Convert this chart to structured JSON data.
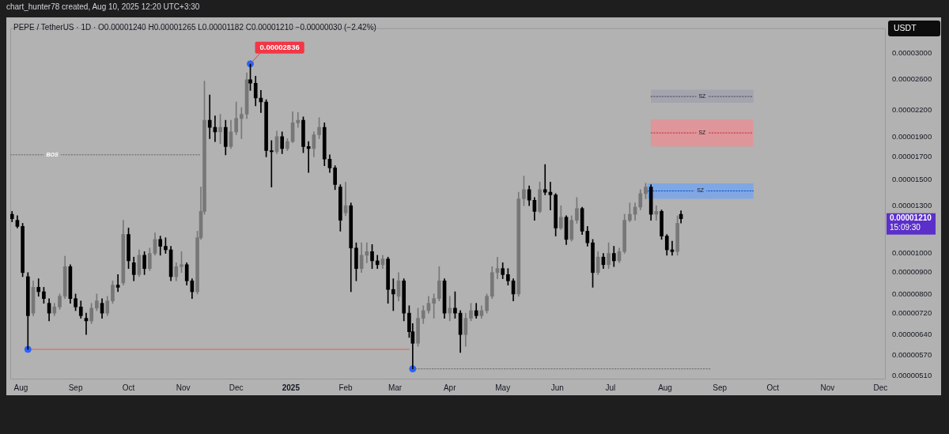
{
  "chart_data": {
    "type": "candlestick",
    "title": "PEPE / TetherUS · 1D · O0.00001240 H0.00001265 L0.00001182 C0.00001210 −0.00000030 (−2.42%)",
    "ylabel": "USDT",
    "annotations": [
      "chart_hunter78 created, Aug 10, 2025 12:20 UTC+3:30",
      {
        "text": "0.00002836",
        "x": "2024-12-09",
        "y": 2.836e-05
      },
      "0.00001210",
      "15:09:30"
    ],
    "x": [
      "2024-07-27",
      "2024-07-30",
      "2024-08-02",
      "2024-08-05",
      "2024-08-08",
      "2024-08-11",
      "2024-08-14",
      "2024-08-17",
      "2024-08-20",
      "2024-08-23",
      "2024-08-26",
      "2024-08-29",
      "2024-09-01",
      "2024-09-04",
      "2024-09-07",
      "2024-09-10",
      "2024-09-13",
      "2024-09-16",
      "2024-09-19",
      "2024-09-22",
      "2024-09-25",
      "2024-09-28",
      "2024-10-01",
      "2024-10-04",
      "2024-10-07",
      "2024-10-10",
      "2024-10-13",
      "2024-10-16",
      "2024-10-19",
      "2024-10-22",
      "2024-10-25",
      "2024-10-28",
      "2024-10-31",
      "2024-11-03",
      "2024-11-06",
      "2024-11-09",
      "2024-11-11",
      "2024-11-13",
      "2024-11-16",
      "2024-11-19",
      "2024-11-22",
      "2024-11-25",
      "2024-11-28",
      "2024-12-01",
      "2024-12-04",
      "2024-12-07",
      "2024-12-09",
      "2024-12-12",
      "2024-12-15",
      "2024-12-18",
      "2024-12-21",
      "2024-12-24",
      "2024-12-27",
      "2024-12-30",
      "2025-01-02",
      "2025-01-05",
      "2025-01-08",
      "2025-01-11",
      "2025-01-14",
      "2025-01-17",
      "2025-01-20",
      "2025-01-23",
      "2025-01-26",
      "2025-01-29",
      "2025-02-01",
      "2025-02-04",
      "2025-02-07",
      "2025-02-10",
      "2025-02-13",
      "2025-02-16",
      "2025-02-19",
      "2025-02-22",
      "2025-02-25",
      "2025-02-28",
      "2025-03-03",
      "2025-03-06",
      "2025-03-09",
      "2025-03-11",
      "2025-03-14",
      "2025-03-17",
      "2025-03-20",
      "2025-03-23",
      "2025-03-26",
      "2025-03-29",
      "2025-04-01",
      "2025-04-04",
      "2025-04-07",
      "2025-04-10",
      "2025-04-13",
      "2025-04-16",
      "2025-04-19",
      "2025-04-22",
      "2025-04-25",
      "2025-04-28",
      "2025-05-01",
      "2025-05-04",
      "2025-05-07",
      "2025-05-10",
      "2025-05-13",
      "2025-05-16",
      "2025-05-19",
      "2025-05-22",
      "2025-05-25",
      "2025-05-28",
      "2025-05-31",
      "2025-06-03",
      "2025-06-06",
      "2025-06-09",
      "2025-06-12",
      "2025-06-15",
      "2025-06-18",
      "2025-06-21",
      "2025-06-24",
      "2025-06-27",
      "2025-06-30",
      "2025-07-03",
      "2025-07-06",
      "2025-07-09",
      "2025-07-12",
      "2025-07-15",
      "2025-07-18",
      "2025-07-21",
      "2025-07-24",
      "2025-07-27",
      "2025-07-30",
      "2025-08-02",
      "2025-08-05",
      "2025-08-08",
      "2025-08-10"
    ],
    "ohlc": [
      [
        1.24e-05,
        1.26e-05,
        1.19e-05,
        1.21e-05
      ],
      [
        1.2e-05,
        1.23e-05,
        1.15e-05,
        1.16e-05
      ],
      [
        1.16e-05,
        1.18e-05,
        8.8e-06,
        9e-06
      ],
      [
        8.8e-06,
        9e-06,
        5.9e-06,
        7.1e-06
      ],
      [
        7.2e-06,
        8.6e-06,
        7.1e-06,
        8.3e-06
      ],
      [
        8.3e-06,
        8.7e-06,
        7.9e-06,
        8.1e-06
      ],
      [
        8.1e-06,
        8.3e-06,
        7.6e-06,
        7.8e-06
      ],
      [
        7.6e-06,
        7.8e-06,
        6.9e-06,
        7.2e-06
      ],
      [
        7.2e-06,
        7.6e-06,
        7.1e-06,
        7.45e-06
      ],
      [
        7.45e-06,
        8e-06,
        7.35e-06,
        7.9e-06
      ],
      [
        7.9e-06,
        9.85e-06,
        7.8e-06,
        9.3e-06
      ],
      [
        9.3e-06,
        9.4e-06,
        7.6e-06,
        7.8e-06
      ],
      [
        7.8e-06,
        8e-06,
        7.3e-06,
        7.45e-06
      ],
      [
        7.45e-06,
        7.7e-06,
        7e-06,
        7.1e-06
      ],
      [
        7e-06,
        7.2e-06,
        6.4e-06,
        6.9e-06
      ],
      [
        6.9e-06,
        7.6e-06,
        6.8e-06,
        7.4e-06
      ],
      [
        7.4e-06,
        8e-06,
        7.3e-06,
        7.7e-06
      ],
      [
        7.6e-06,
        7.8e-06,
        7e-06,
        7.2e-06
      ],
      [
        7.2e-06,
        7.9e-06,
        7.1e-06,
        7.7e-06
      ],
      [
        7.7e-06,
        8.6e-06,
        7.6e-06,
        8.4e-06
      ],
      [
        8.4e-06,
        8.9e-06,
        8.1e-06,
        8.3e-06
      ],
      [
        8.5e-06,
        1.2e-05,
        8.4e-06,
        1.11e-05
      ],
      [
        1.11e-05,
        1.15e-05,
        9.2e-06,
        9.6e-06
      ],
      [
        9.5e-06,
        9.8e-06,
        8.6e-06,
        8.9e-06
      ],
      [
        8.9e-06,
        1.02e-05,
        8.8e-06,
        9.9e-06
      ],
      [
        9.9e-06,
        1.01e-05,
        8.9e-06,
        9.2e-06
      ],
      [
        9.2e-06,
        1.03e-05,
        9.1e-06,
        1e-05
      ],
      [
        1e-05,
        1.12e-05,
        9.9e-06,
        1.08e-05
      ],
      [
        1.08e-05,
        1.1e-05,
        9.9e-06,
        1.04e-05
      ],
      [
        1.04e-05,
        1.09e-05,
        1e-05,
        1.02e-05
      ],
      [
        1.02e-05,
        1.04e-05,
        8.6e-06,
        8.8e-06
      ],
      [
        8.8e-06,
        9.5e-06,
        8.6e-06,
        9.3e-06
      ],
      [
        9.3e-06,
        1.01e-05,
        9e-06,
        9.4e-06
      ],
      [
        9.4e-06,
        9.5e-06,
        8.4e-06,
        8.6e-06
      ],
      [
        8.6e-06,
        8.7e-06,
        7.8e-06,
        8.1e-06
      ],
      [
        8.1e-06,
        1.13e-05,
        8e-06,
        1.09e-05
      ],
      [
        1.09e-05,
        1.44e-05,
        1.08e-05,
        1.26e-05
      ],
      [
        1.26e-05,
        2.58e-05,
        1.24e-05,
        2.08e-05
      ],
      [
        2.08e-05,
        2.39e-05,
        1.88e-05,
        2e-05
      ],
      [
        2e-05,
        2.13e-05,
        1.85e-05,
        1.95e-05
      ],
      [
        1.95e-05,
        2.15e-05,
        1.83e-05,
        2e-05
      ],
      [
        2e-05,
        2.08e-05,
        1.72e-05,
        1.8e-05
      ],
      [
        1.8e-05,
        2.08e-05,
        1.78e-05,
        1.95e-05
      ],
      [
        1.95e-05,
        2.3e-05,
        1.92e-05,
        2.1e-05
      ],
      [
        2.1e-05,
        2.23e-05,
        1.88e-05,
        2.15e-05
      ],
      [
        2.15e-05,
        2.7e-05,
        2.1e-05,
        2.6e-05
      ],
      [
        2.6e-05,
        2.836e-05,
        2.45e-05,
        2.55e-05
      ],
      [
        2.55e-05,
        2.65e-05,
        2.25e-05,
        2.35e-05
      ],
      [
        2.35e-05,
        2.45e-05,
        2.17e-05,
        2.3e-05
      ],
      [
        2.3e-05,
        2.33e-05,
        1.7e-05,
        1.76e-05
      ],
      [
        1.76e-05,
        1.86e-05,
        1.44e-05,
        1.75e-05
      ],
      [
        1.75e-05,
        1.96e-05,
        1.73e-05,
        1.9e-05
      ],
      [
        1.9e-05,
        1.95e-05,
        1.73e-05,
        1.78e-05
      ],
      [
        1.78e-05,
        1.88e-05,
        1.76e-05,
        1.85e-05
      ],
      [
        1.85e-05,
        2.18e-05,
        1.84e-05,
        2.05e-05
      ],
      [
        2.05e-05,
        2.17e-05,
        2e-05,
        2.08e-05
      ],
      [
        2.08e-05,
        2.12e-05,
        1.74e-05,
        1.8e-05
      ],
      [
        1.8e-05,
        1.85e-05,
        1.56e-05,
        1.78e-05
      ],
      [
        1.78e-05,
        1.95e-05,
        1.7e-05,
        1.92e-05
      ],
      [
        1.92e-05,
        2.11e-05,
        1.88e-05,
        2e-05
      ],
      [
        2e-05,
        2.05e-05,
        1.62e-05,
        1.68e-05
      ],
      [
        1.68e-05,
        1.72e-05,
        1.56e-05,
        1.6e-05
      ],
      [
        1.6e-05,
        1.62e-05,
        1.42e-05,
        1.46e-05
      ],
      [
        1.44e-05,
        1.46e-05,
        1.13e-05,
        1.2e-05
      ],
      [
        1.25e-05,
        1.48e-05,
        1.23e-05,
        1.3e-05
      ],
      [
        1.3e-05,
        1.32e-05,
        8.1e-06,
        1.03e-05
      ],
      [
        1.03e-05,
        1.06e-05,
        8.6e-06,
        9.2e-06
      ],
      [
        9.2e-06,
        1.06e-05,
        9e-06,
        9.9e-06
      ],
      [
        9.9e-06,
        1.06e-05,
        9.5e-06,
        1.01e-05
      ],
      [
        1.01e-05,
        1.05e-05,
        9.2e-06,
        9.6e-06
      ],
      [
        9.6e-06,
        9.9e-06,
        9.2e-06,
        9.4e-06
      ],
      [
        9.4e-06,
        9.9e-06,
        9.2e-06,
        9.7e-06
      ],
      [
        9.7e-06,
        9.8e-06,
        7.6e-06,
        8.2e-06
      ],
      [
        8.2e-06,
        8.7e-06,
        7.3e-06,
        8e-06
      ],
      [
        7.9e-06,
        9e-06,
        7.7e-06,
        8.6e-06
      ],
      [
        8.6e-06,
        8.7e-06,
        6.9e-06,
        7.2e-06
      ],
      [
        7.2e-06,
        7.5e-06,
        6.3e-06,
        6.5e-06
      ],
      [
        6.5e-06,
        6.8e-06,
        5.3e-06,
        6.1e-06
      ],
      [
        6.1e-06,
        7.4e-06,
        6e-06,
        7e-06
      ],
      [
        7e-06,
        7.5e-06,
        6.8e-06,
        7.3e-06
      ],
      [
        7.3e-06,
        7.9e-06,
        7.2e-06,
        7.6e-06
      ],
      [
        7.6e-06,
        8e-06,
        7e-06,
        7.8e-06
      ],
      [
        7.8e-06,
        9.3e-06,
        7.7e-06,
        8.6e-06
      ],
      [
        8.6e-06,
        8.7e-06,
        7e-06,
        7.2e-06
      ],
      [
        7.2e-06,
        7.9e-06,
        6.9e-06,
        7.4e-06
      ],
      [
        7.4e-06,
        8.1e-06,
        7e-06,
        7.2e-06
      ],
      [
        7.2e-06,
        7.3e-06,
        5.8e-06,
        6.4e-06
      ],
      [
        6.4e-06,
        7.2e-06,
        6e-06,
        7e-06
      ],
      [
        7e-06,
        7.6e-06,
        6.9e-06,
        7.3e-06
      ],
      [
        7.3e-06,
        7.6e-06,
        7e-06,
        7.1e-06
      ],
      [
        7.1e-06,
        7.5e-06,
        7e-06,
        7.3e-06
      ],
      [
        7.3e-06,
        8e-06,
        7.2e-06,
        7.9e-06
      ],
      [
        7.9e-06,
        9.3e-06,
        7.8e-06,
        9e-06
      ],
      [
        9e-06,
        9.8e-06,
        8.7e-06,
        9.2e-06
      ],
      [
        9.2e-06,
        9.5e-06,
        8.7e-06,
        8.9e-06
      ],
      [
        8.9e-06,
        9.2e-06,
        8.4e-06,
        8.6e-06
      ],
      [
        8.6e-06,
        8.7e-06,
        7.7e-06,
        8e-06
      ],
      [
        8e-06,
        1.4e-05,
        7.9e-06,
        1.35e-05
      ],
      [
        1.35e-05,
        1.53e-05,
        1.3e-05,
        1.42e-05
      ],
      [
        1.42e-05,
        1.45e-05,
        1.3e-05,
        1.34e-05
      ],
      [
        1.34e-05,
        1.36e-05,
        1.2e-05,
        1.26e-05
      ],
      [
        1.26e-05,
        1.48e-05,
        1.25e-05,
        1.42e-05
      ],
      [
        1.42e-05,
        1.63e-05,
        1.38e-05,
        1.4e-05
      ],
      [
        1.4e-05,
        1.48e-05,
        1.27e-05,
        1.38e-05
      ],
      [
        1.38e-05,
        1.39e-05,
        1.1e-05,
        1.15e-05
      ],
      [
        1.15e-05,
        1.3e-05,
        1.14e-05,
        1.22e-05
      ],
      [
        1.22e-05,
        1.23e-05,
        1.05e-05,
        1.08e-05
      ],
      [
        1.08e-05,
        1.23e-05,
        1.07e-05,
        1.2e-05
      ],
      [
        1.2e-05,
        1.36e-05,
        1.18e-05,
        1.28e-05
      ],
      [
        1.28e-05,
        1.29e-05,
        1.11e-05,
        1.13e-05
      ],
      [
        1.13e-05,
        1.16e-05,
        1.04e-05,
        1.06e-05
      ],
      [
        1.06e-05,
        1.08e-05,
        8.3e-06,
        9e-06
      ],
      [
        9e-06,
        1.01e-05,
        8.9e-06,
        9.8e-06
      ],
      [
        9.8e-06,
        1e-05,
        9.2e-06,
        9.4e-06
      ],
      [
        9.4e-06,
        1.06e-05,
        9.2e-06,
        1e-05
      ],
      [
        1e-05,
        1.04e-05,
        9.3e-06,
        9.6e-06
      ],
      [
        9.6e-06,
        1.03e-05,
        9.5e-06,
        1.01e-05
      ],
      [
        1.01e-05,
        1.24e-05,
        1e-05,
        1.2e-05
      ],
      [
        1.2e-05,
        1.32e-05,
        1.19e-05,
        1.24e-05
      ],
      [
        1.24e-05,
        1.32e-05,
        1.2e-05,
        1.29e-05
      ],
      [
        1.29e-05,
        1.42e-05,
        1.27e-05,
        1.39e-05
      ],
      [
        1.39e-05,
        1.47e-05,
        1.35e-05,
        1.44e-05
      ],
      [
        1.44e-05,
        1.46e-05,
        1.2e-05,
        1.24e-05
      ],
      [
        1.24e-05,
        1.3e-05,
        1.2e-05,
        1.26e-05
      ],
      [
        1.26e-05,
        1.27e-05,
        1.08e-05,
        1.1e-05
      ],
      [
        1.1e-05,
        1.11e-05,
        9.9e-06,
        1.02e-05
      ],
      [
        1.02e-05,
        1.07e-05,
        9.9e-06,
        1.01e-05
      ],
      [
        1.01e-05,
        1.23e-05,
        9.9e-06,
        1.18e-05
      ],
      [
        1.24e-05,
        1.265e-05,
        1.182e-05,
        1.21e-05
      ]
    ],
    "colors": [
      "#000000",
      "#000000",
      "#000000",
      "#000000",
      "#777777",
      "#000000",
      "#000000",
      "#000000",
      "#777777",
      "#777777",
      "#777777",
      "#000000",
      "#000000",
      "#000000",
      "#000000",
      "#777777",
      "#777777",
      "#000000",
      "#777777",
      "#777777",
      "#000000",
      "#777777",
      "#000000",
      "#000000",
      "#777777",
      "#000000",
      "#777777",
      "#777777",
      "#000000",
      "#000000",
      "#000000",
      "#777777",
      "#777777",
      "#000000",
      "#000000",
      "#777777",
      "#777777",
      "#777777",
      "#000000",
      "#000000",
      "#777777",
      "#000000",
      "#777777",
      "#777777",
      "#777777",
      "#777777",
      "#000000",
      "#000000",
      "#000000",
      "#000000",
      "#000000",
      "#777777",
      "#000000",
      "#777777",
      "#777777",
      "#777777",
      "#000000",
      "#000000",
      "#777777",
      "#777777",
      "#000000",
      "#000000",
      "#000000",
      "#000000",
      "#777777",
      "#000000",
      "#000000",
      "#777777",
      "#777777",
      "#000000",
      "#000000",
      "#777777",
      "#000000",
      "#000000",
      "#777777",
      "#000000",
      "#000000",
      "#000000",
      "#777777",
      "#777777",
      "#777777",
      "#777777",
      "#777777",
      "#000000",
      "#777777",
      "#000000",
      "#000000",
      "#777777",
      "#777777",
      "#000000",
      "#777777",
      "#777777",
      "#777777",
      "#777777",
      "#000000",
      "#000000",
      "#000000",
      "#777777",
      "#777777",
      "#000000",
      "#000000",
      "#777777",
      "#000000",
      "#000000",
      "#000000",
      "#777777",
      "#000000",
      "#777777",
      "#777777",
      "#000000",
      "#000000",
      "#000000",
      "#777777",
      "#000000",
      "#777777",
      "#000000",
      "#777777",
      "#777777",
      "#777777",
      "#777777",
      "#777777",
      "#777777",
      "#000000",
      "#777777",
      "#000000",
      "#000000",
      "#000000",
      "#777777",
      "#000000"
    ],
    "series": [
      {
        "type": "line",
        "name": "BOS",
        "x": [
          "2024-07-26",
          "2024-11-11"
        ],
        "values": [
          1.72e-05,
          1.72e-05
        ],
        "color": "#6a6a6a",
        "line_style": "dotted"
      },
      {
        "type": "line",
        "x": [
          "2024-08-07",
          "2025-03-09"
        ],
        "values": [
          5.9e-06,
          5.9e-06
        ],
        "color": "#e05a62"
      },
      {
        "type": "line",
        "x": [
          "2025-03-11",
          "2025-08-27"
        ],
        "values": [
          5.3e-06,
          5.3e-06
        ],
        "color": "#6a6a6a",
        "line_style": "dotted"
      },
      {
        "type": "scatter",
        "x": [
          "2024-08-05",
          "2024-12-09",
          "2025-03-11"
        ],
        "values": [
          5.9e-06,
          2.836e-05,
          5.3e-06
        ],
        "color": "#2962ff",
        "marker": "circle"
      },
      {
        "type": "line",
        "name": "SZ",
        "x": [
          "2025-07-24",
          "2025-09-20"
        ],
        "values": [
          2.37e-05,
          2.37e-05
        ],
        "lower": [
          2.29e-05,
          2.29e-05
        ],
        "upper": [
          2.46e-05,
          2.46e-05
        ],
        "color": "#47495b",
        "line_style": "dotted"
      },
      {
        "type": "line",
        "name": "SZ",
        "x": [
          "2025-07-24",
          "2025-09-20"
        ],
        "values": [
          1.94e-05,
          1.94e-05
        ],
        "lower": [
          1.8e-05,
          1.8e-05
        ],
        "upper": [
          2.09e-05,
          2.09e-05
        ],
        "color": "#bf2d35",
        "line_style": "dotted"
      },
      {
        "type": "line",
        "name": "SZ",
        "x": [
          "2025-07-22",
          "2025-09-20"
        ],
        "values": [
          1.41e-05,
          1.41e-05
        ],
        "lower": [
          1.35e-05,
          1.35e-05
        ],
        "upper": [
          1.47e-05,
          1.47e-05
        ],
        "color": "#004fc7",
        "line_style": "dotted"
      }
    ],
    "xlim": [
      "2024-07-26",
      "2025-12-04"
    ],
    "xticks": [
      {
        "value": "2024-08-01",
        "label": "Aug"
      },
      {
        "value": "2024-09-01",
        "label": "Sep"
      },
      {
        "value": "2024-10-01",
        "label": "Oct"
      },
      {
        "value": "2024-11-01",
        "label": "Nov"
      },
      {
        "value": "2024-12-01",
        "label": "Dec"
      },
      {
        "value": "2025-01-01",
        "label": "2025"
      },
      {
        "value": "2025-02-01",
        "label": "Feb"
      },
      {
        "value": "2025-03-01",
        "label": "Mar"
      },
      {
        "value": "2025-04-01",
        "label": "Apr"
      },
      {
        "value": "2025-05-01",
        "label": "May"
      },
      {
        "value": "2025-06-01",
        "label": "Jun"
      },
      {
        "value": "2025-07-01",
        "label": "Jul"
      },
      {
        "value": "2025-08-01",
        "label": "Aug"
      },
      {
        "value": "2025-09-01",
        "label": "Sep"
      },
      {
        "value": "2025-10-01",
        "label": "Oct"
      },
      {
        "value": "2025-11-01",
        "label": "Nov"
      },
      {
        "value": "2025-12-01",
        "label": "Dec"
      }
    ],
    "ylim": [
      5e-06,
      3.45e-05
    ],
    "yticks": [
      {
        "value": 5.1e-06,
        "label": "0.00000510"
      },
      {
        "value": 5.7e-06,
        "label": "0.00000570"
      },
      {
        "value": 6.4e-06,
        "label": "0.00000640"
      },
      {
        "value": 7.2e-06,
        "label": "0.00000720"
      },
      {
        "value": 8e-06,
        "label": "0.00000800"
      },
      {
        "value": 9e-06,
        "label": "0.00000900"
      },
      {
        "value": 1e-05,
        "label": "0.00001000"
      },
      {
        "value": 1.3e-05,
        "label": "0.00001300"
      },
      {
        "value": 1.5e-05,
        "label": "0.00001500"
      },
      {
        "value": 1.7e-05,
        "label": "0.00001700"
      },
      {
        "value": 1.9e-05,
        "label": "0.00001900"
      },
      {
        "value": 2.2e-05,
        "label": "0.00002200"
      },
      {
        "value": 2.6e-05,
        "label": "0.00002600"
      },
      {
        "value": 3e-05,
        "label": "0.00003000"
      }
    ],
    "log": true
  }
}
